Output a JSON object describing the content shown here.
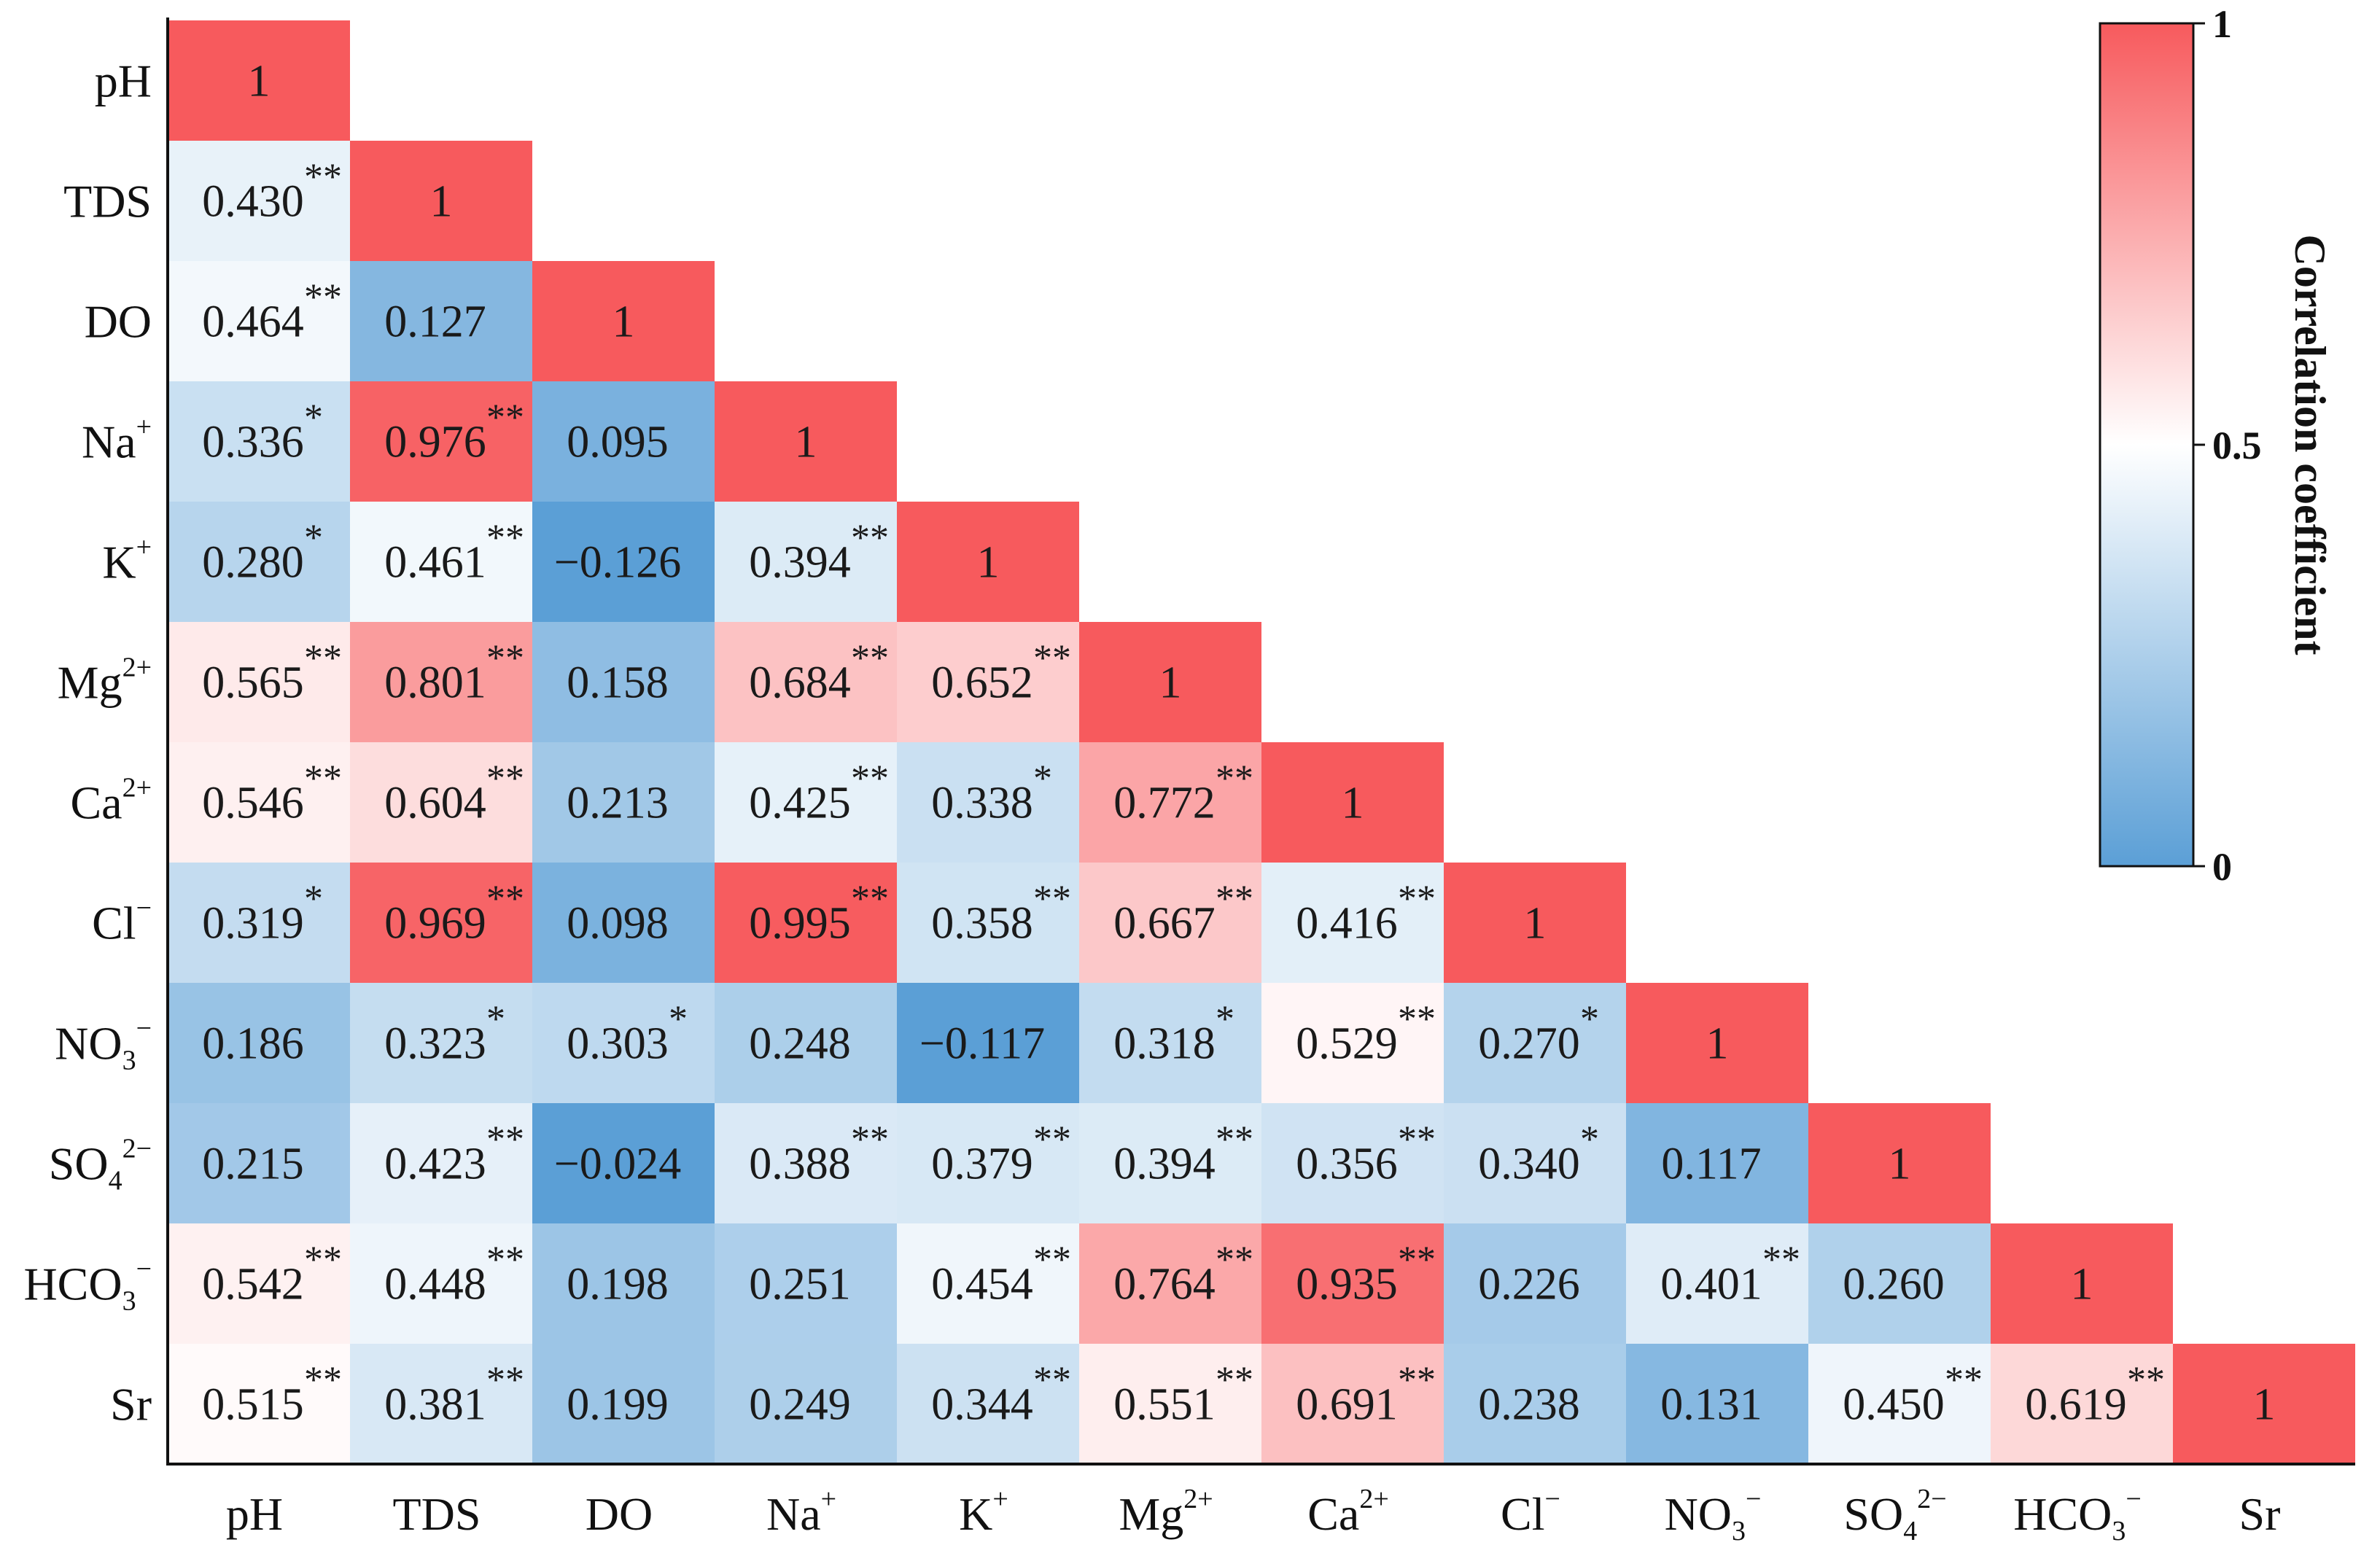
{
  "chart_data": {
    "type": "heatmap",
    "variables": [
      {
        "id": "pH",
        "base": "pH",
        "sub": "",
        "sup": ""
      },
      {
        "id": "TDS",
        "base": "TDS",
        "sub": "",
        "sup": ""
      },
      {
        "id": "DO",
        "base": "DO",
        "sub": "",
        "sup": ""
      },
      {
        "id": "Na+",
        "base": "Na",
        "sub": "",
        "sup": "+"
      },
      {
        "id": "K+",
        "base": "K",
        "sub": "",
        "sup": "+"
      },
      {
        "id": "Mg2+",
        "base": "Mg",
        "sub": "",
        "sup": "2+"
      },
      {
        "id": "Ca2+",
        "base": "Ca",
        "sub": "",
        "sup": "2+"
      },
      {
        "id": "Cl-",
        "base": "Cl",
        "sub": "",
        "sup": "−"
      },
      {
        "id": "NO3-",
        "base": "NO",
        "sub": "3",
        "sup": "−"
      },
      {
        "id": "SO42-",
        "base": "SO",
        "sub": "4",
        "sup": "2−"
      },
      {
        "id": "HCO3-",
        "base": "HCO",
        "sub": "3",
        "sup": "−"
      },
      {
        "id": "Sr",
        "base": "Sr",
        "sub": "",
        "sup": ""
      }
    ],
    "matrix_lower": [
      [
        1
      ],
      [
        0.43,
        1
      ],
      [
        0.464,
        0.127,
        1
      ],
      [
        0.336,
        0.976,
        0.095,
        1
      ],
      [
        0.28,
        0.461,
        -0.126,
        0.394,
        1
      ],
      [
        0.565,
        0.801,
        0.158,
        0.684,
        0.652,
        1
      ],
      [
        0.546,
        0.604,
        0.213,
        0.425,
        0.338,
        0.772,
        1
      ],
      [
        0.319,
        0.969,
        0.098,
        0.995,
        0.358,
        0.667,
        0.416,
        1
      ],
      [
        0.186,
        0.323,
        0.303,
        0.248,
        -0.117,
        0.318,
        0.529,
        0.27,
        1
      ],
      [
        0.215,
        0.423,
        -0.024,
        0.388,
        0.379,
        0.394,
        0.356,
        0.34,
        0.117,
        1
      ],
      [
        0.542,
        0.448,
        0.198,
        0.251,
        0.454,
        0.764,
        0.935,
        0.226,
        0.401,
        0.26,
        1
      ],
      [
        0.515,
        0.381,
        0.199,
        0.249,
        0.344,
        0.551,
        0.691,
        0.238,
        0.131,
        0.45,
        0.619,
        1
      ]
    ],
    "significance_lower": [
      [
        ""
      ],
      [
        "**",
        ""
      ],
      [
        "**",
        "",
        ""
      ],
      [
        "*",
        "**",
        "",
        ""
      ],
      [
        "*",
        "**",
        "",
        "**",
        ""
      ],
      [
        "**",
        "**",
        "",
        "**",
        "**",
        ""
      ],
      [
        "**",
        "**",
        "",
        "**",
        "*",
        "**",
        ""
      ],
      [
        "*",
        "**",
        "",
        "**",
        "**",
        "**",
        "**",
        ""
      ],
      [
        "",
        "*",
        "*",
        "",
        "",
        "*",
        "**",
        "*",
        ""
      ],
      [
        "",
        "**",
        "",
        "**",
        "**",
        "**",
        "**",
        "*",
        "",
        ""
      ],
      [
        "**",
        "**",
        "",
        "",
        "**",
        "**",
        "**",
        "",
        "**",
        "",
        ""
      ],
      [
        "**",
        "**",
        "",
        "",
        "**",
        "**",
        "**",
        "",
        "",
        "**",
        "**",
        ""
      ]
    ],
    "colorbar": {
      "label": "Correlation coefficient",
      "range": [
        0,
        1
      ],
      "ticks": [
        "1",
        "0.5",
        "0"
      ],
      "tick_values": [
        1,
        0.5,
        0
      ],
      "colors": {
        "low": "#5b9fd6",
        "mid": "#ffffff",
        "high": "#f75a5d"
      }
    },
    "legend_position": "top-right"
  }
}
